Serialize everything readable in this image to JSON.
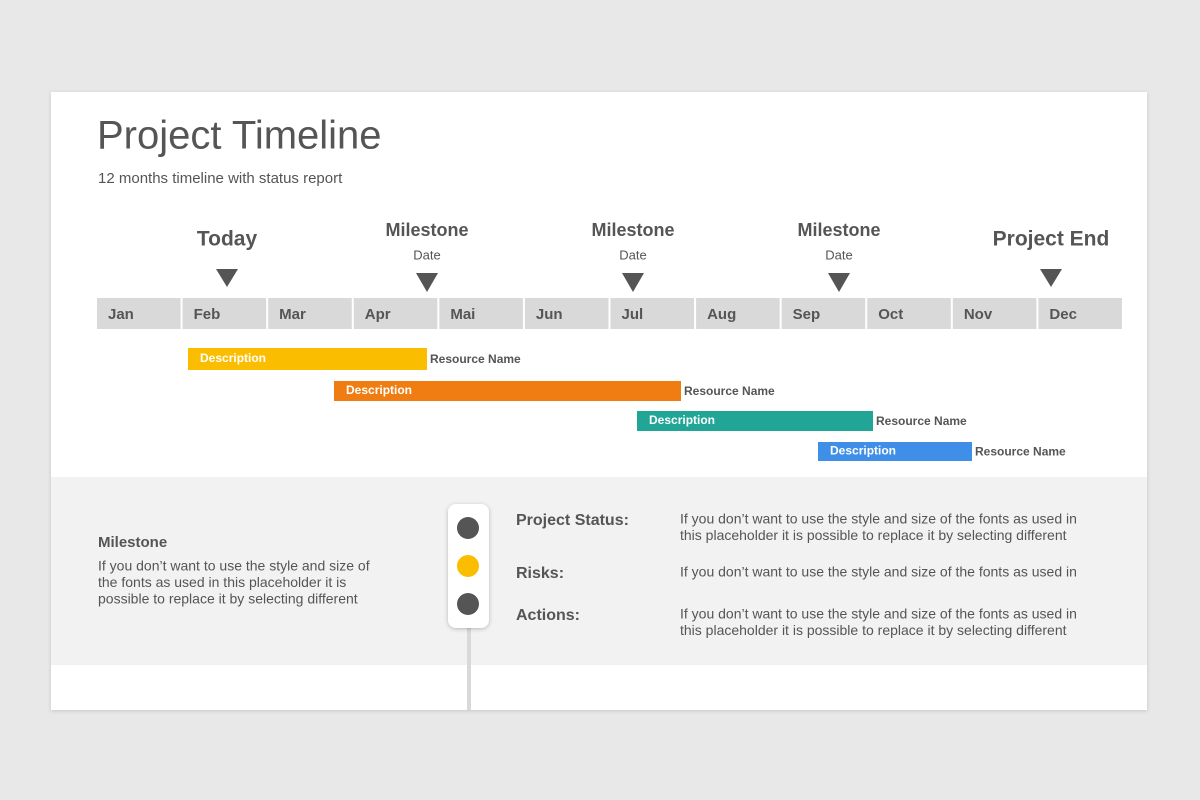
{
  "header": {
    "title": "Project Timeline",
    "subtitle": "12 months timeline with status report"
  },
  "months": [
    "Jan",
    "Feb",
    "Mar",
    "Apr",
    "Mai",
    "Jun",
    "Jul",
    "Aug",
    "Sep",
    "Oct",
    "Nov",
    "Dec"
  ],
  "markers": [
    {
      "label": "Today"
    },
    {
      "label": "Milestone",
      "date": "Date"
    },
    {
      "label": "Milestone",
      "date": "Date"
    },
    {
      "label": "Milestone",
      "date": "Date"
    },
    {
      "label": "Project End"
    }
  ],
  "tasks": [
    {
      "label": "Description",
      "resource": "Resource Name"
    },
    {
      "label": "Description",
      "resource": "Resource Name"
    },
    {
      "label": "Description",
      "resource": "Resource Name"
    },
    {
      "label": "Description",
      "resource": "Resource Name"
    }
  ],
  "milestone": {
    "heading": "Milestone",
    "lines": [
      "If you don’t want to use the style and size of",
      "the fonts as used in this placeholder it is",
      "possible to replace it by selecting different"
    ]
  },
  "status": [
    {
      "label": "Project Status:",
      "lines": [
        "If you don’t want to use the style and size of the fonts as used in",
        "this placeholder it is possible to replace it by selecting different"
      ]
    },
    {
      "label": "Risks:",
      "lines": [
        "If you don’t want to use the style and size of the fonts as used in"
      ]
    },
    {
      "label": "Actions:",
      "lines": [
        "If you don’t want to use the style and size of the fonts as used in",
        "this placeholder it is possible to replace it by selecting different"
      ]
    }
  ]
}
